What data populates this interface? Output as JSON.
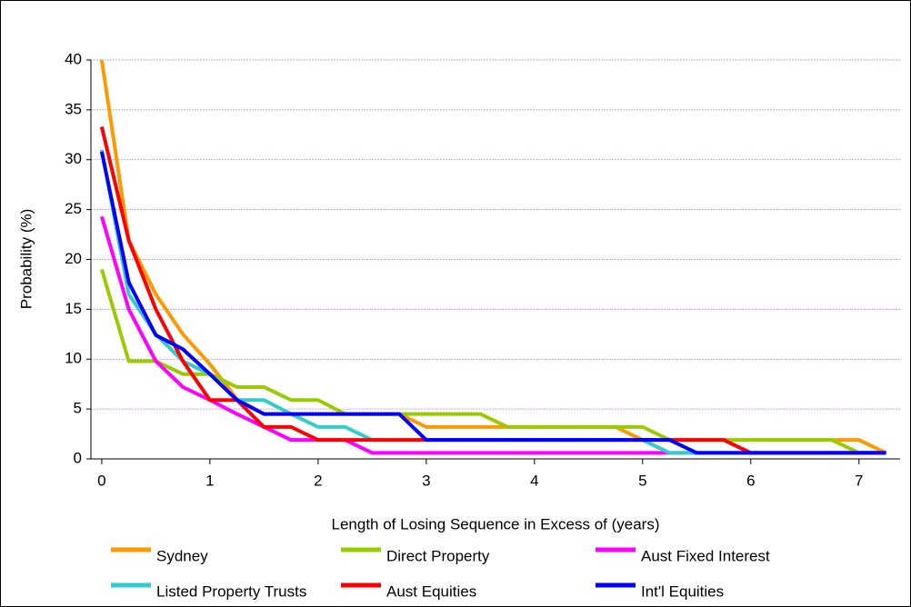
{
  "chart_data": {
    "type": "line",
    "x_label": "Length of Losing Sequence in Excess of (years)",
    "y_label": "Probability (%)",
    "x": [
      0,
      0.25,
      0.5,
      0.75,
      1,
      1.25,
      1.5,
      1.75,
      2,
      2.25,
      2.5,
      2.75,
      3,
      3.25,
      3.5,
      3.75,
      4,
      4.25,
      4.5,
      4.75,
      5,
      5.25,
      5.5,
      5.75,
      6,
      6.25,
      6.5,
      6.75,
      7,
      7.25
    ],
    "xlim": [
      -0.1,
      7.38
    ],
    "xticks": [
      0,
      1,
      2,
      3,
      4,
      5,
      6,
      7
    ],
    "ylim": [
      0,
      40
    ],
    "yticks": [
      0,
      5,
      10,
      15,
      20,
      25,
      30,
      35,
      40
    ],
    "grid": true,
    "legend": "bottom",
    "series": [
      {
        "name": "Sydney",
        "color": "#ff9900",
        "values": [
          40,
          21.9,
          16.5,
          12.5,
          9.5,
          6,
          4.5,
          4.5,
          4.5,
          4.5,
          4.5,
          4.5,
          3.2,
          3.2,
          3.2,
          3.2,
          3.2,
          3.2,
          3.2,
          3.2,
          1.9,
          1.9,
          1.9,
          1.9,
          1.9,
          1.9,
          1.9,
          1.9,
          1.9,
          0.6
        ]
      },
      {
        "name": "Direct Property",
        "color": "#99cc00",
        "values": [
          19,
          9.8,
          9.8,
          8.5,
          8.5,
          7.2,
          7.2,
          5.9,
          5.9,
          4.5,
          4.5,
          4.5,
          4.5,
          4.5,
          4.5,
          3.2,
          3.2,
          3.2,
          3.2,
          3.2,
          3.2,
          1.9,
          1.9,
          1.9,
          1.9,
          1.9,
          1.9,
          1.9,
          0.6,
          0.6
        ]
      },
      {
        "name": "Aust Fixed Interest",
        "color": "#ff00ff",
        "values": [
          24.3,
          15,
          9.8,
          7.2,
          5.9,
          4.5,
          3.2,
          1.9,
          1.9,
          1.9,
          0.6,
          0.6,
          0.6,
          0.6,
          0.6,
          0.6,
          0.6,
          0.6,
          0.6,
          0.6,
          0.6,
          0.6,
          0.6,
          0.6,
          0.6,
          0.6,
          0.6,
          0.6,
          0.6,
          0.6
        ]
      },
      {
        "name": "Listed Property Trusts",
        "color": "#33cccc",
        "values": [
          31,
          16.5,
          12.5,
          9.8,
          8.5,
          5.9,
          5.9,
          4.5,
          3.2,
          3.2,
          1.9,
          1.9,
          1.9,
          1.9,
          1.9,
          1.9,
          1.9,
          1.9,
          1.9,
          1.9,
          1.9,
          0.6,
          0.6,
          0.6,
          0.6,
          0.6,
          0.6,
          0.6,
          0.6,
          0.6
        ]
      },
      {
        "name": "Aust Equities",
        "color": "#ff0000",
        "values": [
          33.3,
          21.9,
          15,
          9.8,
          5.9,
          5.9,
          3.2,
          3.2,
          1.9,
          1.9,
          1.9,
          1.9,
          1.9,
          1.9,
          1.9,
          1.9,
          1.9,
          1.9,
          1.9,
          1.9,
          1.9,
          1.9,
          1.9,
          1.9,
          0.6,
          0.6,
          0.6,
          0.6,
          0.6,
          0.6
        ]
      },
      {
        "name": "Int'l Equities",
        "color": "#0000ff",
        "values": [
          30.8,
          17.7,
          12.4,
          11,
          8.5,
          5.9,
          4.5,
          4.5,
          4.5,
          4.5,
          4.5,
          4.5,
          1.9,
          1.9,
          1.9,
          1.9,
          1.9,
          1.9,
          1.9,
          1.9,
          1.9,
          1.9,
          0.6,
          0.6,
          0.6,
          0.6,
          0.6,
          0.6,
          0.6,
          0.6
        ]
      }
    ]
  }
}
